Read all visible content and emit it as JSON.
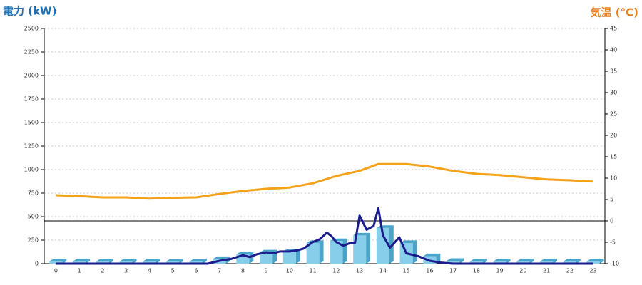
{
  "chart_data": {
    "type": "bar",
    "ylabel": "電力 (kW)",
    "y2label": "気温 (°C)",
    "categories": [
      "0",
      "1",
      "2",
      "3",
      "4",
      "5",
      "6",
      "7",
      "8",
      "9",
      "10",
      "11",
      "12",
      "13",
      "14",
      "15",
      "16",
      "17",
      "18",
      "19",
      "20",
      "21",
      "22",
      "23"
    ],
    "ylim": [
      0,
      2500
    ],
    "yticks": [
      0,
      250,
      500,
      750,
      1000,
      1250,
      1500,
      1750,
      2000,
      2250,
      2500
    ],
    "y2lim": [
      -10,
      45
    ],
    "y2ticks": [
      -10,
      -5,
      0,
      5,
      10,
      15,
      20,
      25,
      30,
      35,
      40,
      45
    ],
    "grid": true,
    "series": [
      {
        "type": "bar",
        "color": "#87ceeb",
        "side_color": "#4aa3c8",
        "values": [
          25,
          25,
          25,
          25,
          25,
          25,
          25,
          50,
          100,
          120,
          130,
          220,
          240,
          300,
          380,
          220,
          80,
          30,
          25,
          25,
          25,
          25,
          25,
          25
        ]
      },
      {
        "type": "line",
        "color": "#1c1c8c",
        "x": [
          0,
          6.5,
          7,
          7.5,
          8,
          8.3,
          8.6,
          9,
          9.3,
          9.6,
          10,
          10.3,
          10.6,
          11,
          11.3,
          11.6,
          11.8,
          12,
          12.3,
          12.6,
          12.8,
          13,
          13.3,
          13.6,
          13.8,
          14,
          14.3,
          14.7,
          15,
          15.5,
          16,
          16.5,
          17,
          23
        ],
        "values": [
          0,
          0,
          30,
          50,
          90,
          70,
          100,
          120,
          110,
          130,
          130,
          140,
          160,
          230,
          260,
          330,
          290,
          230,
          190,
          220,
          220,
          510,
          360,
          400,
          590,
          300,
          170,
          280,
          110,
          80,
          30,
          10,
          0,
          0
        ]
      },
      {
        "type": "line",
        "axis": "y2",
        "color": "#f5a21b",
        "x": [
          0,
          1,
          2,
          3,
          4,
          5,
          6,
          7,
          8,
          9,
          10,
          11,
          12,
          13,
          13.8,
          15,
          16,
          17,
          18,
          19,
          20,
          21,
          22,
          23
        ],
        "values": [
          6,
          5.8,
          5.5,
          5.5,
          5.2,
          5.4,
          5.5,
          6.3,
          7,
          7.5,
          7.8,
          8.8,
          10.5,
          11.7,
          13.3,
          13.3,
          12.7,
          11.7,
          11,
          10.7,
          10.2,
          9.7,
          9.5,
          9.2
        ]
      }
    ]
  }
}
